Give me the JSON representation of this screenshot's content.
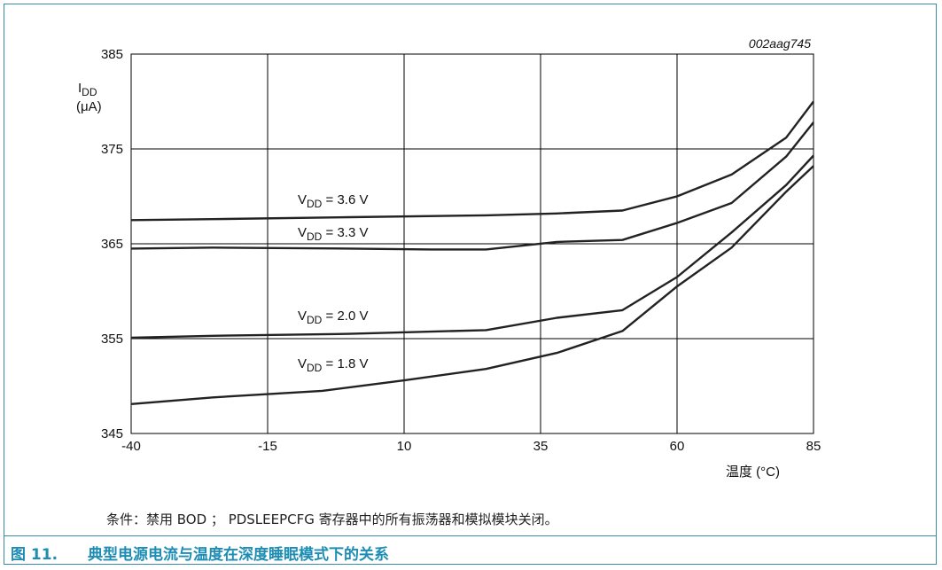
{
  "figure": {
    "id_label": "002aag745",
    "condition_text": "条件：禁用 BOD ； PDSLEEPCFG 寄存器中的所有振荡器和模拟模块关闭。",
    "caption_number": "图 11.",
    "caption_title": "典型电源电流与温度在深度睡眠模式下的关系"
  },
  "colors": {
    "border": "#3a8aa6",
    "caption": "#1e8db4",
    "line": "#222222",
    "grid": "#000000"
  },
  "chart_data": {
    "type": "line",
    "title": "",
    "xlabel": "温度 (°C)",
    "ylabel_main": "I",
    "ylabel_sub": "DD",
    "ylabel_unit": "(μA)",
    "xlim": [
      -40,
      85
    ],
    "ylim": [
      345,
      385
    ],
    "xticks": [
      -40,
      -15,
      10,
      35,
      60,
      85
    ],
    "yticks": [
      345,
      355,
      365,
      375,
      385
    ],
    "grid": true,
    "series": [
      {
        "name": "VDD = 3.6 V",
        "label_main": "V",
        "label_sub": "DD",
        "label_rest": " = 3.6 V",
        "x": [
          -40,
          -25,
          0,
          25,
          38,
          50,
          60,
          70,
          80,
          85
        ],
        "y": [
          367.5,
          367.6,
          367.8,
          368.0,
          368.2,
          368.5,
          370.0,
          372.3,
          376.2,
          380.0
        ]
      },
      {
        "name": "VDD = 3.3 V",
        "label_main": "V",
        "label_sub": "DD",
        "label_rest": " = 3.3 V",
        "x": [
          -40,
          -25,
          0,
          15,
          25,
          38,
          50,
          60,
          70,
          80,
          85
        ],
        "y": [
          364.5,
          364.6,
          364.5,
          364.4,
          364.4,
          365.2,
          365.4,
          367.2,
          369.3,
          374.2,
          377.8
        ]
      },
      {
        "name": "VDD = 2.0 V",
        "label_main": "V",
        "label_sub": "DD",
        "label_rest": " = 2.0 V",
        "x": [
          -40,
          -25,
          0,
          25,
          38,
          50,
          60,
          70,
          80,
          85
        ],
        "y": [
          355.1,
          355.3,
          355.5,
          355.9,
          357.2,
          358.0,
          361.5,
          366.2,
          371.2,
          374.3
        ]
      },
      {
        "name": "VDD = 1.8 V",
        "label_main": "V",
        "label_sub": "DD",
        "label_rest": " = 1.8 V",
        "x": [
          -40,
          -25,
          -5,
          10,
          25,
          38,
          50,
          60,
          70,
          80,
          85
        ],
        "y": [
          348.1,
          348.8,
          349.5,
          350.6,
          351.8,
          353.5,
          355.8,
          360.5,
          364.6,
          370.5,
          373.2
        ]
      }
    ]
  }
}
